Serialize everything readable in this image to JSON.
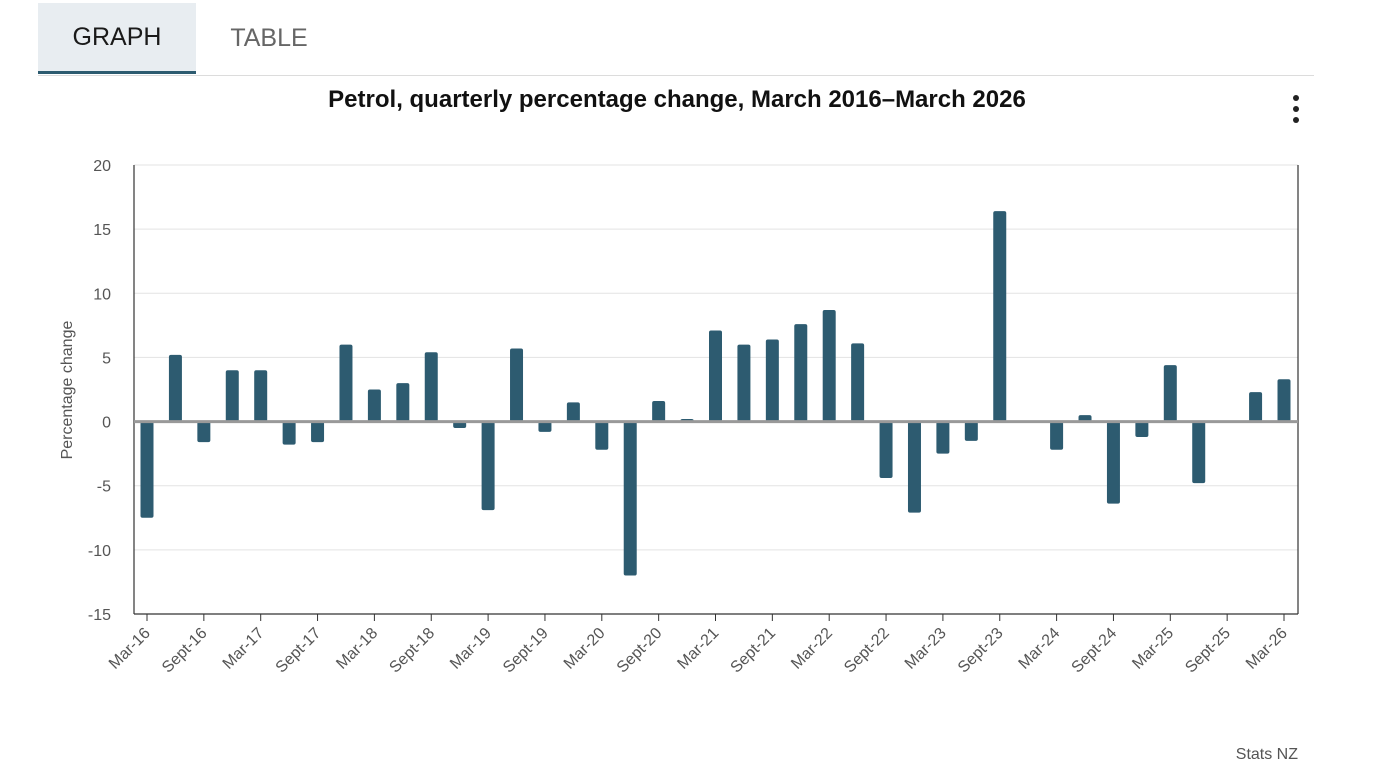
{
  "tabs": [
    {
      "label": "GRAPH",
      "active": true
    },
    {
      "label": "TABLE",
      "active": false
    }
  ],
  "menu": {
    "icon": "more-vertical-icon"
  },
  "source": "Stats NZ",
  "colors": {
    "bar": "#2d5b70",
    "zero_line": "#999999",
    "grid": "#e3e3e3",
    "axis": "#333333",
    "tab_active_bg": "#e8edf1"
  },
  "chart_data": {
    "type": "bar",
    "title": "Petrol, quarterly percentage change, March 2016–March 2026",
    "xlabel": "",
    "ylabel": "Percentage change",
    "ylim": [
      -15,
      20
    ],
    "yticks": [
      20,
      15,
      10,
      5,
      0,
      -5,
      -10,
      -15
    ],
    "grid": true,
    "categories": [
      "Mar-16",
      "Jun-16",
      "Sept-16",
      "Dec-16",
      "Mar-17",
      "Jun-17",
      "Sept-17",
      "Dec-17",
      "Mar-18",
      "Jun-18",
      "Sept-18",
      "Dec-18",
      "Mar-19",
      "Jun-19",
      "Sept-19",
      "Dec-19",
      "Mar-20",
      "Jun-20",
      "Sept-20",
      "Dec-20",
      "Mar-21",
      "Jun-21",
      "Sept-21",
      "Dec-21",
      "Mar-22",
      "Jun-22",
      "Sept-22",
      "Dec-22",
      "Mar-23",
      "Jun-23",
      "Sept-23",
      "Dec-23",
      "Mar-24",
      "Jun-24",
      "Sept-24",
      "Dec-24",
      "Mar-25",
      "Jun-25",
      "Sept-25",
      "Dec-25",
      "Mar-26"
    ],
    "tick_labels": [
      "Mar-16",
      "Sept-16",
      "Mar-17",
      "Sept-17",
      "Mar-18",
      "Sept-18",
      "Mar-19",
      "Sept-19",
      "Mar-20",
      "Sept-20",
      "Mar-21",
      "Sept-21",
      "Mar-22",
      "Sept-22",
      "Mar-23",
      "Sept-23",
      "Mar-24",
      "Sept-24",
      "Mar-25",
      "Sept-25",
      "Mar-26"
    ],
    "values": [
      -7.5,
      5.2,
      -1.6,
      4.0,
      4.0,
      -1.8,
      -1.6,
      6.0,
      2.5,
      3.0,
      5.4,
      -0.5,
      -6.9,
      5.7,
      -0.8,
      1.5,
      -2.2,
      -12.0,
      1.6,
      0.2,
      7.1,
      6.0,
      6.4,
      7.6,
      8.7,
      6.1,
      -4.4,
      -7.1,
      -2.5,
      -1.5,
      16.4,
      0.0,
      -2.2,
      0.5,
      -6.4,
      -1.2,
      4.4,
      -4.8,
      0.0,
      2.3,
      3.3
    ]
  }
}
